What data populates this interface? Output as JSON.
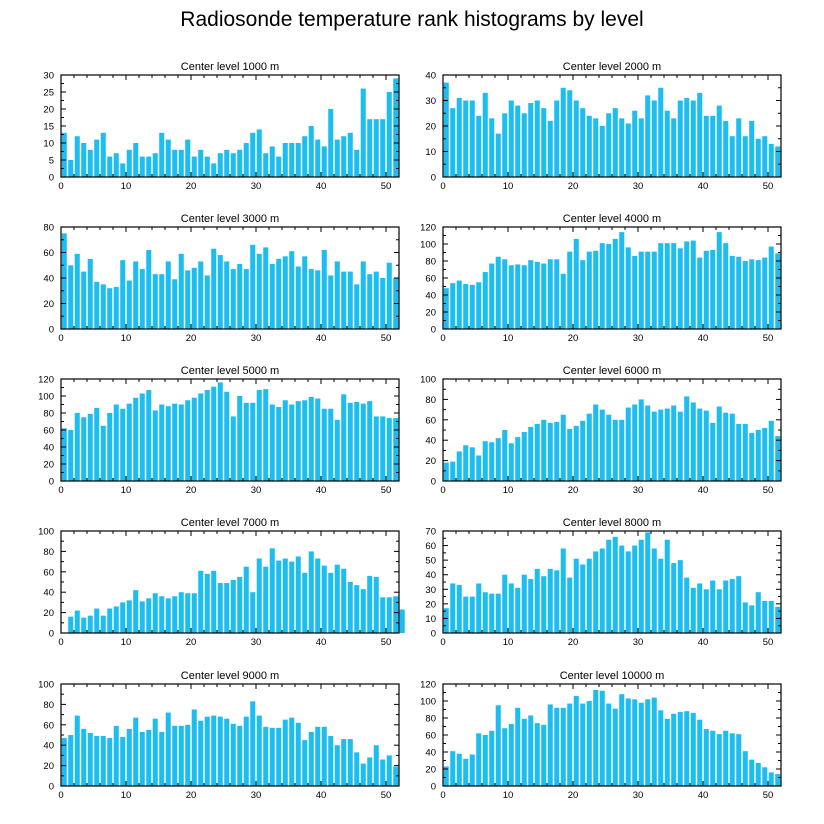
{
  "figure": {
    "title": "Radiosonde temperature rank histograms by level",
    "bar_color": "#1ebdf0",
    "axis_color": "#000000"
  },
  "chart_data": [
    {
      "type": "bar",
      "title": "Center level 1000 m",
      "xlim": [
        0,
        52
      ],
      "ylim": [
        0,
        30
      ],
      "xticks": [
        0,
        10,
        20,
        30,
        40,
        50
      ],
      "yticks": [
        0,
        5,
        10,
        15,
        20,
        25,
        30
      ],
      "values": [
        13,
        5,
        12,
        10,
        8,
        11,
        13,
        6,
        7,
        4,
        8,
        10,
        6,
        6,
        7,
        13,
        11,
        8,
        8,
        11,
        6,
        8,
        6,
        4,
        7,
        8,
        7,
        8,
        10,
        13,
        14,
        7,
        9,
        6,
        10,
        10,
        10,
        12,
        15,
        11,
        9,
        20,
        11,
        12,
        13,
        8,
        26,
        17,
        17,
        17,
        25,
        29
      ]
    },
    {
      "type": "bar",
      "title": "Center level 2000 m",
      "xlim": [
        0,
        52
      ],
      "ylim": [
        0,
        40
      ],
      "xticks": [
        0,
        10,
        20,
        30,
        40,
        50
      ],
      "yticks": [
        0,
        10,
        20,
        30,
        40
      ],
      "values": [
        37,
        27,
        31,
        30,
        30,
        24,
        33,
        23,
        17,
        25,
        30,
        28,
        25,
        29,
        30,
        27,
        22,
        30,
        35,
        34,
        30,
        27,
        24,
        23,
        20,
        25,
        27,
        23,
        21,
        26,
        23,
        32,
        30,
        35,
        26,
        23,
        30,
        31,
        30,
        33,
        24,
        24,
        28,
        22,
        16,
        23,
        16,
        22,
        15,
        16,
        13,
        12
      ]
    },
    {
      "type": "bar",
      "title": "Center level 3000 m",
      "xlim": [
        0,
        52
      ],
      "ylim": [
        0,
        80
      ],
      "xticks": [
        0,
        10,
        20,
        30,
        40,
        50
      ],
      "yticks": [
        0,
        20,
        40,
        60,
        80
      ],
      "values": [
        75,
        50,
        59,
        45,
        55,
        37,
        35,
        32,
        33,
        54,
        38,
        53,
        47,
        62,
        43,
        43,
        53,
        39,
        59,
        46,
        48,
        53,
        42,
        63,
        58,
        53,
        47,
        51,
        47,
        66,
        59,
        64,
        51,
        55,
        57,
        61,
        49,
        57,
        47,
        46,
        62,
        42,
        53,
        45,
        45,
        35,
        53,
        43,
        45,
        40,
        52,
        40
      ]
    },
    {
      "type": "bar",
      "title": "Center level 4000 m",
      "xlim": [
        0,
        52
      ],
      "ylim": [
        0,
        120
      ],
      "xticks": [
        0,
        10,
        20,
        30,
        40,
        50
      ],
      "yticks": [
        0,
        20,
        40,
        60,
        80,
        100,
        120
      ],
      "values": [
        48,
        54,
        57,
        53,
        52,
        55,
        67,
        77,
        85,
        82,
        75,
        76,
        75,
        81,
        79,
        77,
        82,
        82,
        65,
        91,
        106,
        81,
        91,
        92,
        101,
        100,
        106,
        114,
        96,
        86,
        91,
        91,
        91,
        101,
        101,
        101,
        95,
        103,
        104,
        84,
        92,
        93,
        114,
        101,
        86,
        85,
        80,
        82,
        81,
        84,
        97,
        89
      ]
    },
    {
      "type": "bar",
      "title": "Center level 5000 m",
      "xlim": [
        0,
        52
      ],
      "ylim": [
        0,
        120
      ],
      "xticks": [
        0,
        10,
        20,
        30,
        40,
        50
      ],
      "yticks": [
        0,
        20,
        40,
        60,
        80,
        100,
        120
      ],
      "values": [
        62,
        60,
        80,
        75,
        79,
        86,
        65,
        80,
        90,
        85,
        91,
        98,
        103,
        107,
        83,
        90,
        88,
        91,
        90,
        95,
        98,
        103,
        107,
        111,
        116,
        105,
        76,
        100,
        92,
        92,
        107,
        108,
        90,
        87,
        95,
        90,
        94,
        95,
        99,
        97,
        85,
        85,
        72,
        102,
        92,
        93,
        91,
        94,
        76,
        76,
        74,
        74
      ]
    },
    {
      "type": "bar",
      "title": "Center level 6000 m",
      "xlim": [
        0,
        52
      ],
      "ylim": [
        0,
        100
      ],
      "xticks": [
        0,
        10,
        20,
        30,
        40,
        50
      ],
      "yticks": [
        0,
        20,
        40,
        60,
        80,
        100
      ],
      "values": [
        18,
        19,
        29,
        35,
        33,
        25,
        39,
        38,
        42,
        50,
        37,
        43,
        48,
        53,
        56,
        60,
        57,
        58,
        65,
        51,
        54,
        59,
        66,
        75,
        70,
        65,
        60,
        60,
        72,
        75,
        80,
        74,
        68,
        70,
        71,
        74,
        68,
        83,
        77,
        71,
        69,
        57,
        73,
        67,
        66,
        56,
        56,
        47,
        50,
        52,
        59,
        44
      ]
    },
    {
      "type": "bar",
      "title": "Center level 7000 m",
      "xlim": [
        0,
        52
      ],
      "ylim": [
        0,
        100
      ],
      "xticks": [
        0,
        10,
        20,
        30,
        40,
        50
      ],
      "yticks": [
        0,
        20,
        40,
        60,
        80,
        100
      ],
      "values": [
        0,
        16,
        22,
        15,
        17,
        24,
        17,
        24,
        26,
        30,
        32,
        42,
        31,
        34,
        39,
        36,
        34,
        36,
        40,
        39,
        39,
        61,
        58,
        61,
        49,
        49,
        52,
        55,
        65,
        40,
        73,
        65,
        83,
        71,
        73,
        70,
        75,
        59,
        80,
        73,
        66,
        59,
        67,
        63,
        50,
        47,
        43,
        56,
        55,
        35,
        35,
        36,
        23
      ]
    },
    {
      "type": "bar",
      "title": "Center level 8000 m",
      "xlim": [
        0,
        52
      ],
      "ylim": [
        0,
        70
      ],
      "xticks": [
        0,
        10,
        20,
        30,
        40,
        50
      ],
      "yticks": [
        0,
        10,
        20,
        30,
        40,
        50,
        60,
        70
      ],
      "values": [
        17,
        34,
        33,
        25,
        25,
        34,
        28,
        27,
        27,
        40,
        34,
        31,
        40,
        37,
        44,
        39,
        44,
        43,
        58,
        38,
        51,
        47,
        51,
        56,
        58,
        64,
        66,
        60,
        56,
        60,
        64,
        69,
        58,
        51,
        64,
        48,
        50,
        38,
        31,
        34,
        30,
        36,
        30,
        36,
        37,
        39,
        21,
        19,
        28,
        22,
        22,
        18
      ]
    },
    {
      "type": "bar",
      "title": "Center level 9000 m",
      "xlim": [
        0,
        52
      ],
      "ylim": [
        0,
        100
      ],
      "xticks": [
        0,
        10,
        20,
        30,
        40,
        50
      ],
      "yticks": [
        0,
        20,
        40,
        60,
        80,
        100
      ],
      "values": [
        47,
        50,
        69,
        56,
        52,
        49,
        49,
        47,
        59,
        48,
        56,
        67,
        53,
        55,
        66,
        53,
        72,
        59,
        59,
        60,
        75,
        64,
        68,
        69,
        68,
        66,
        61,
        59,
        68,
        83,
        69,
        58,
        57,
        57,
        65,
        67,
        62,
        45,
        53,
        58,
        58,
        49,
        40,
        46,
        46,
        33,
        22,
        28,
        40,
        26,
        30,
        19
      ]
    },
    {
      "type": "bar",
      "title": "Center level 10000 m",
      "xlim": [
        0,
        52
      ],
      "ylim": [
        0,
        120
      ],
      "xticks": [
        0,
        10,
        20,
        30,
        40,
        50
      ],
      "yticks": [
        0,
        20,
        40,
        60,
        80,
        100,
        120
      ],
      "values": [
        23,
        41,
        38,
        32,
        37,
        62,
        60,
        65,
        95,
        68,
        73,
        92,
        79,
        83,
        74,
        72,
        96,
        92,
        92,
        97,
        106,
        97,
        100,
        113,
        112,
        97,
        91,
        108,
        103,
        102,
        98,
        102,
        104,
        89,
        79,
        85,
        87,
        88,
        86,
        78,
        67,
        65,
        61,
        65,
        62,
        61,
        41,
        31,
        27,
        22,
        16,
        14
      ]
    }
  ]
}
